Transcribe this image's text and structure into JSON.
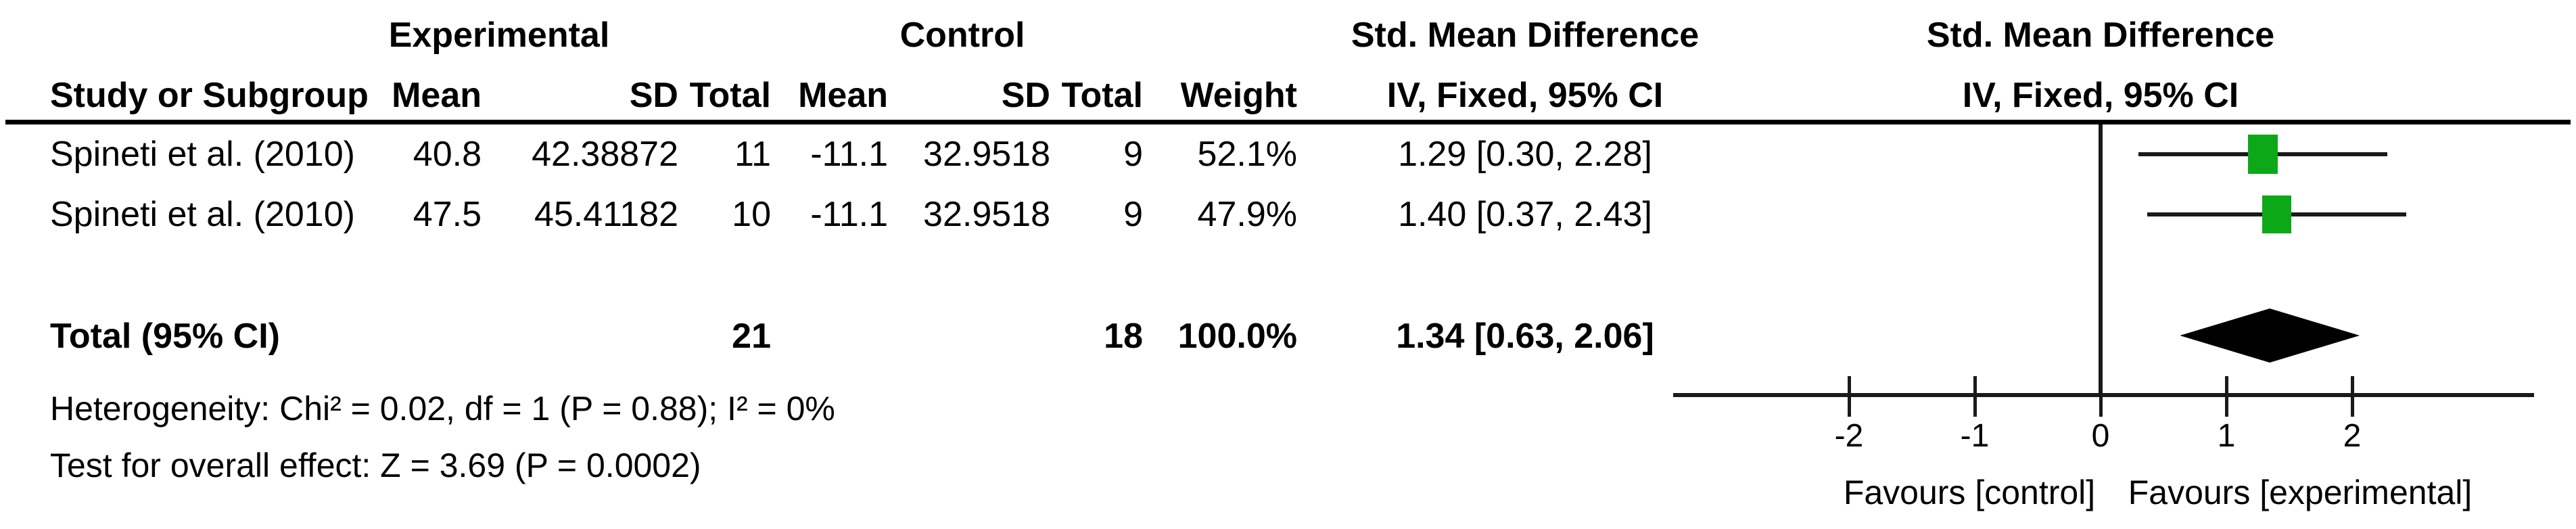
{
  "table": {
    "group_headers": {
      "experimental": "Experimental",
      "control": "Control",
      "smd_left": "Std. Mean Difference",
      "smd_right": "Std. Mean Difference"
    },
    "col_headers": {
      "study": "Study or Subgroup",
      "exp_mean": "Mean",
      "exp_sd": "SD",
      "exp_total": "Total",
      "ctl_mean": "Mean",
      "ctl_sd": "SD",
      "ctl_total": "Total",
      "weight": "Weight",
      "iv_left": "IV, Fixed, 95% CI",
      "iv_right": "IV, Fixed, 95% CI"
    },
    "rows": [
      {
        "study": "Spineti et al. (2010)",
        "exp_mean": "40.8",
        "exp_sd": "42.38872",
        "exp_total": "11",
        "ctl_mean": "-11.1",
        "ctl_sd": "32.9518",
        "ctl_total": "9",
        "weight": "52.1%",
        "smd_ci": "1.29 [0.30, 2.28]"
      },
      {
        "study": "Spineti et al. (2010)",
        "exp_mean": "47.5",
        "exp_sd": "45.41182",
        "exp_total": "10",
        "ctl_mean": "-11.1",
        "ctl_sd": "32.9518",
        "ctl_total": "9",
        "weight": "47.9%",
        "smd_ci": "1.40 [0.37, 2.43]"
      }
    ],
    "total_row": {
      "label": "Total (95% CI)",
      "exp_total": "21",
      "ctl_total": "18",
      "weight": "100.0%",
      "smd_ci": "1.34 [0.63, 2.06]"
    }
  },
  "footer": {
    "heterogeneity": "Heterogeneity: Chi² = 0.02, df = 1 (P = 0.88); I² = 0%",
    "overall_effect": "Test for overall effect: Z = 3.69 (P = 0.0002)"
  },
  "chart_data": {
    "type": "forest",
    "effect_measure": "Std. Mean Difference, IV, Fixed, 95% CI",
    "studies": [
      {
        "name": "Spineti et al. (2010)",
        "smd": 1.29,
        "ci_low": 0.3,
        "ci_high": 2.28,
        "weight_pct": 52.1
      },
      {
        "name": "Spineti et al. (2010)",
        "smd": 1.4,
        "ci_low": 0.37,
        "ci_high": 2.43,
        "weight_pct": 47.9
      }
    ],
    "total": {
      "smd": 1.34,
      "ci_low": 0.63,
      "ci_high": 2.06,
      "weight_pct": 100.0
    },
    "x_axis": {
      "ticks": [
        -2,
        -1,
        0,
        1,
        2
      ],
      "labels": [
        "-2",
        "-1",
        "0",
        "1",
        "2"
      ],
      "xlim": [
        -3.4,
        3.45
      ],
      "left_label": "Favours [control]",
      "right_label": "Favours [experimental]"
    },
    "marker_color": "#0ca818",
    "line_color": "#1a1a1a",
    "diamond_color": "#000000"
  }
}
